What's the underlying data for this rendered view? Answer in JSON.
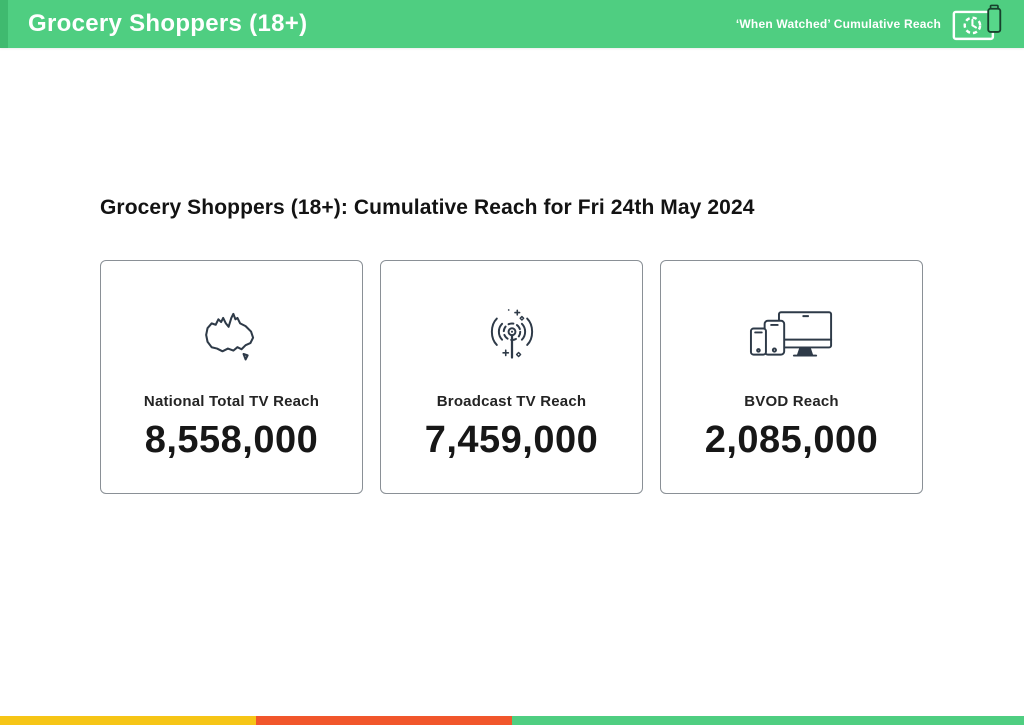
{
  "header": {
    "title": "Grocery Shoppers (18+)",
    "subtitle": "‘When Watched’ Cumulative Reach",
    "icon": "tv-clock-and-phone-icon"
  },
  "main": {
    "heading": "Grocery Shoppers (18+): Cumulative Reach for Fri 24th May 2024",
    "cards": [
      {
        "icon": "australia-map-icon",
        "label": "National Total TV Reach",
        "value": "8,558,000"
      },
      {
        "icon": "broadcast-antenna-icon",
        "label": "Broadcast TV Reach",
        "value": "7,459,000"
      },
      {
        "icon": "devices-icon",
        "label": "BVOD Reach",
        "value": "2,085,000"
      }
    ]
  },
  "footer": {
    "segments": [
      {
        "name": "yellow",
        "color": "#F6C516",
        "width_pct": 25
      },
      {
        "name": "orange-red",
        "color": "#F1562B",
        "width_pct": 25
      },
      {
        "name": "green",
        "color": "#4FCE81",
        "width_pct": 50
      }
    ]
  },
  "colors": {
    "header_green": "#4FCE81",
    "header_accent_strip": "#3FBA6F",
    "icon_stroke": "#2E3A48",
    "card_border": "#8a9096"
  }
}
